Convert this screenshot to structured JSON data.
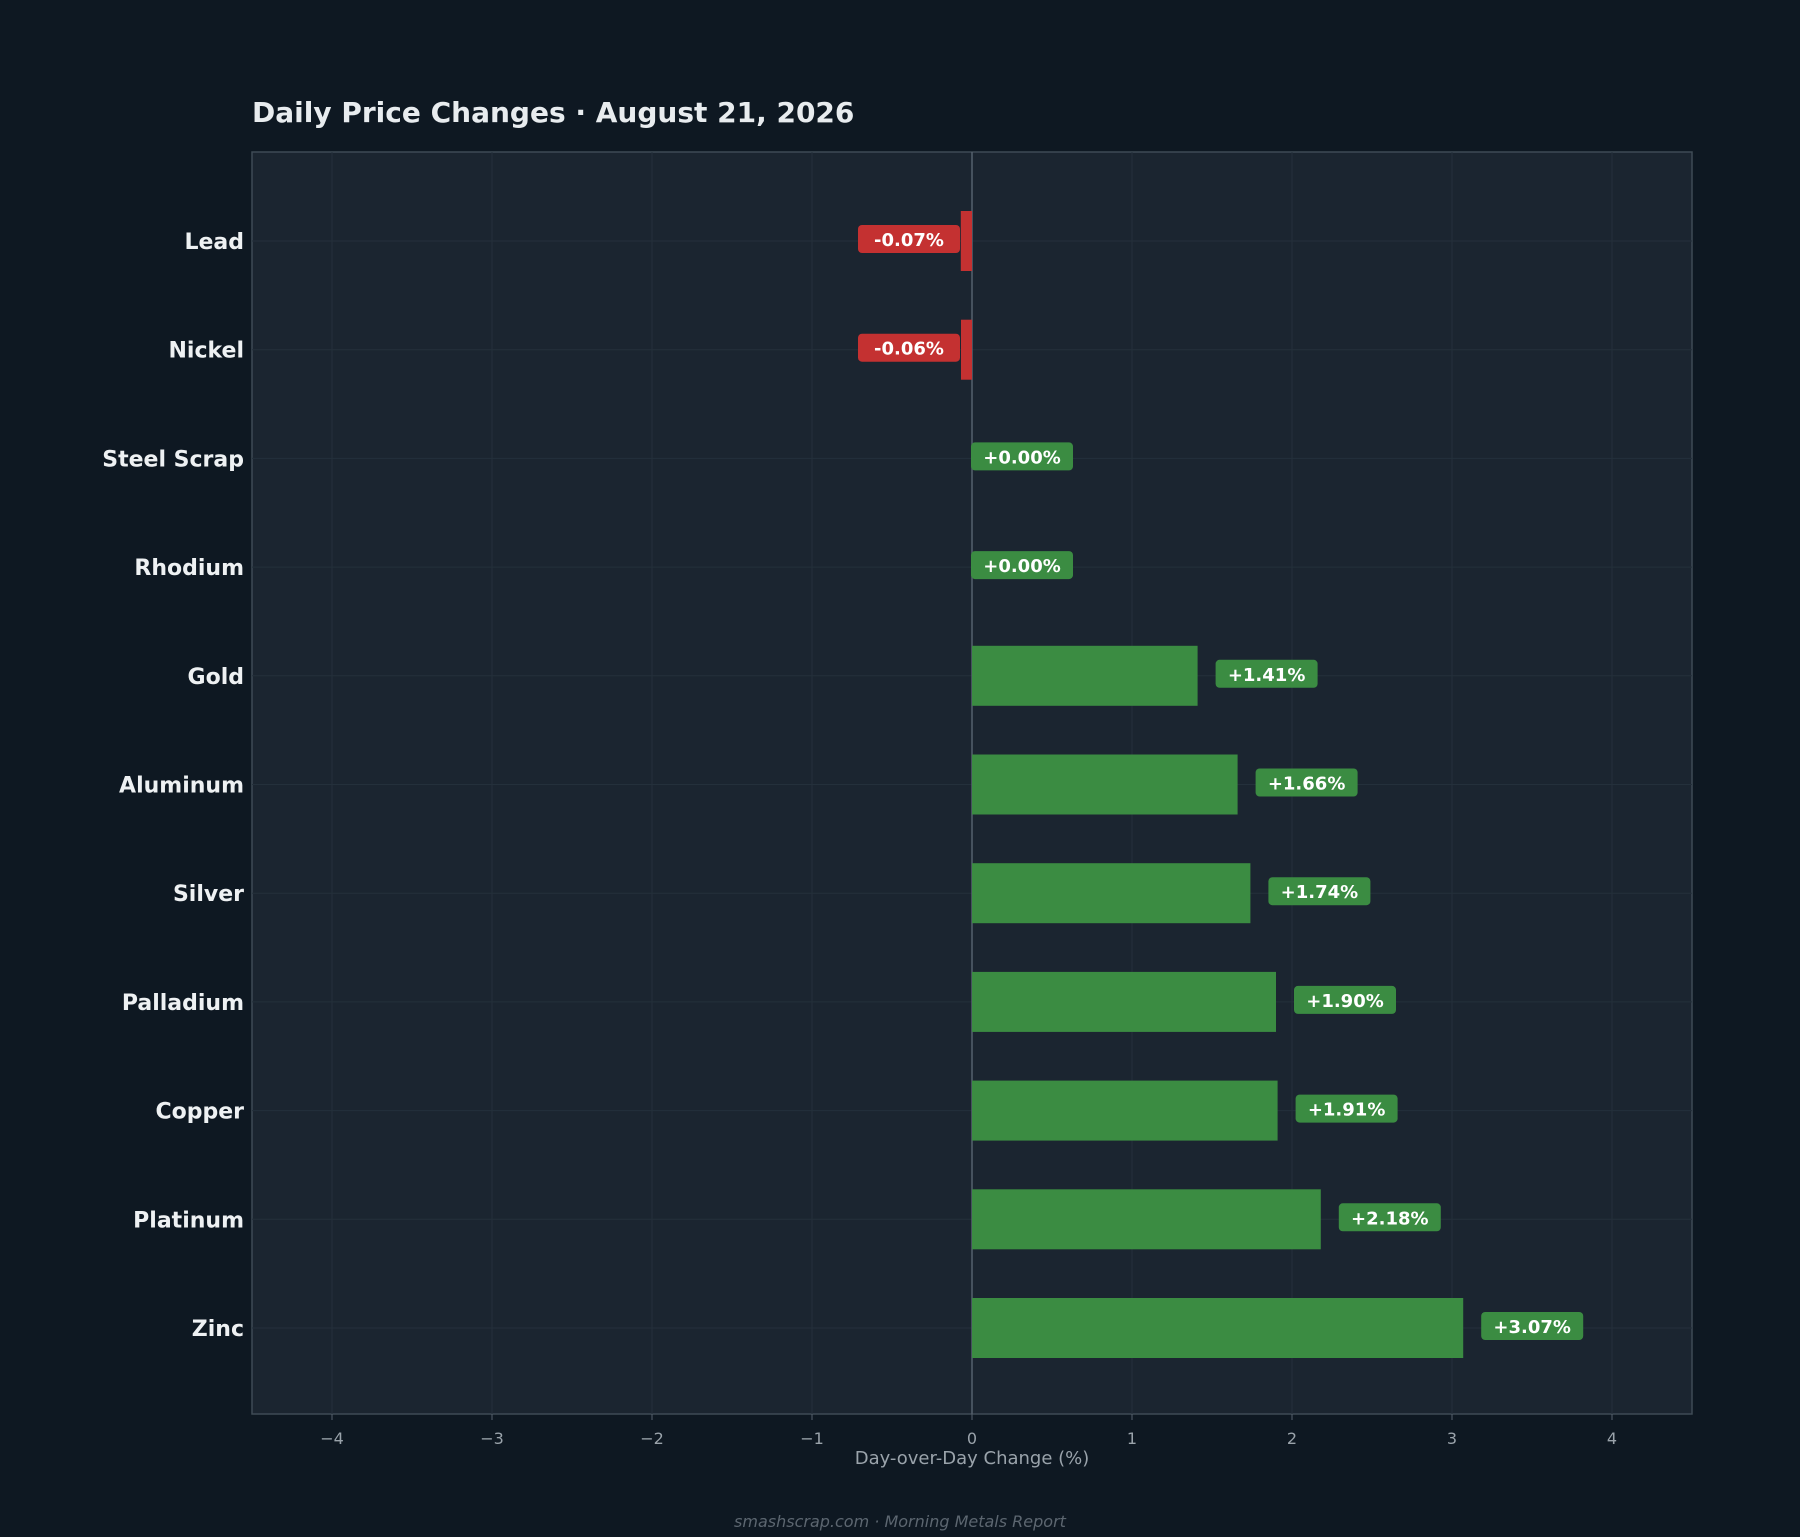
{
  "chart_data": {
    "type": "bar",
    "orientation": "horizontal",
    "title": "Daily Price Changes  ·  August 21, 2026",
    "xlabel": "Day-over-Day Change (%)",
    "ylabel": "",
    "xlim": [
      -4.5,
      4.5
    ],
    "xticks": [
      -4,
      -3,
      -2,
      -1,
      0,
      1,
      2,
      3,
      4
    ],
    "xtick_labels": [
      "−4",
      "−3",
      "−2",
      "−1",
      "0",
      "1",
      "2",
      "3",
      "4"
    ],
    "categories": [
      "Lead",
      "Nickel",
      "Steel Scrap",
      "Rhodium",
      "Gold",
      "Aluminum",
      "Silver",
      "Palladium",
      "Copper",
      "Platinum",
      "Zinc"
    ],
    "values": [
      -0.07,
      -0.06,
      0.0,
      0.0,
      1.41,
      1.66,
      1.74,
      1.9,
      1.91,
      2.18,
      3.07
    ],
    "value_labels": [
      "-0.07%",
      "-0.06%",
      "+0.00%",
      "+0.00%",
      "+1.41%",
      "+1.66%",
      "+1.74%",
      "+1.90%",
      "+1.91%",
      "+2.18%",
      "+3.07%"
    ],
    "grid": true,
    "legend": false,
    "colors": {
      "positive": "#3b8c42",
      "negative": "#c43131",
      "plot_background": "#1b2530",
      "page_background": "#0e1822",
      "zero_line": "#55616d"
    }
  },
  "footer": "smashscrap.com  ·  Morning Metals Report"
}
